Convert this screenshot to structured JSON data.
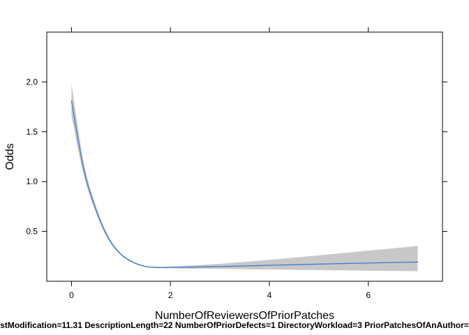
{
  "colors": {
    "line": "#3a7bd5",
    "band": "#c8c8c8",
    "axis": "#000000",
    "background": "#ffffff"
  },
  "chart_data": {
    "type": "line",
    "xlabel": "NumberOfReviewersOfPriorPatches",
    "ylabel": "Odds",
    "footer": "stModification=11.31 DescriptionLength=22 NumberOfPriorDefects=1 DirectoryWorkload=3 PriorPatchesOfAnAuthor=",
    "xlim": [
      -0.5,
      7.5
    ],
    "ylim": [
      0.0,
      2.5
    ],
    "x_ticks": [
      0,
      2,
      4,
      6
    ],
    "x_tick_labels": [
      "0",
      "2",
      "4",
      "6"
    ],
    "y_ticks": [
      0.5,
      1.0,
      1.5,
      2.0
    ],
    "y_tick_labels": [
      "0.5",
      "1.0",
      "1.5",
      "2.0"
    ],
    "grid": false,
    "series": [
      {
        "x": [
          0,
          0.25,
          0.5,
          0.75,
          1.0,
          1.25,
          1.5,
          1.75,
          2.0,
          2.5,
          3.0,
          3.5,
          4.0,
          4.5,
          5.0,
          5.5,
          6.0,
          6.5,
          7.0
        ],
        "y": [
          1.81,
          1.12,
          0.71,
          0.43,
          0.27,
          0.19,
          0.148,
          0.138,
          0.139,
          0.143,
          0.148,
          0.154,
          0.16,
          0.166,
          0.172,
          0.178,
          0.183,
          0.188,
          0.193
        ],
        "lower": [
          1.66,
          1.06,
          0.68,
          0.41,
          0.26,
          0.182,
          0.142,
          0.132,
          0.13,
          0.127,
          0.125,
          0.121,
          0.118,
          0.115,
          0.112,
          0.109,
          0.106,
          0.103,
          0.1
        ],
        "upper": [
          1.98,
          1.19,
          0.75,
          0.45,
          0.28,
          0.198,
          0.154,
          0.145,
          0.148,
          0.16,
          0.175,
          0.194,
          0.215,
          0.237,
          0.26,
          0.283,
          0.308,
          0.33,
          0.355
        ]
      }
    ]
  }
}
